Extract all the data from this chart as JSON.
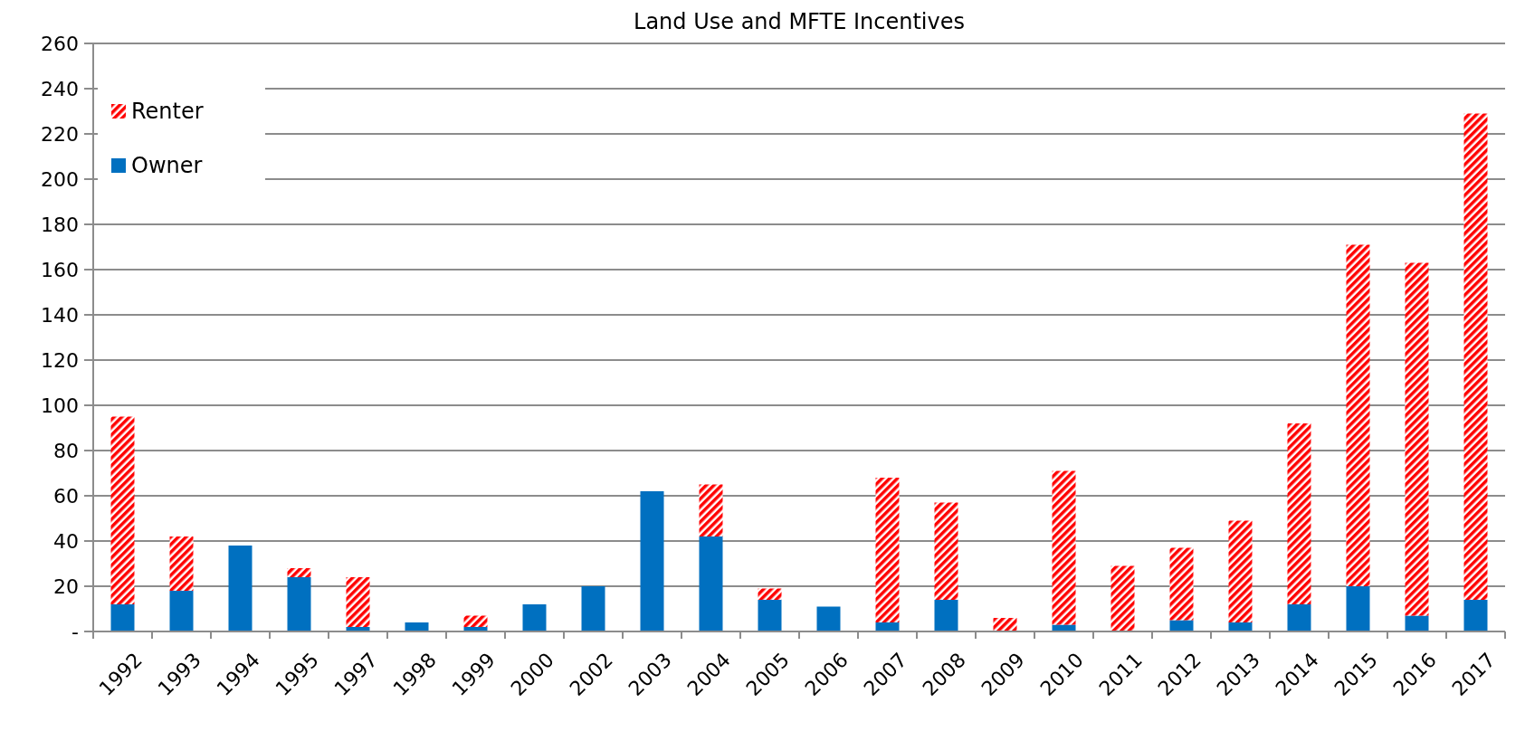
{
  "chart_data": {
    "type": "bar",
    "title": "Land Use and MFTE Incentives",
    "categories": [
      "1992",
      "1993",
      "1994",
      "1995",
      "1997",
      "1998",
      "1999",
      "2000",
      "2002",
      "2003",
      "2004",
      "2005",
      "2006",
      "2007",
      "2008",
      "2009",
      "2010",
      "2011",
      "2012",
      "2013",
      "2014",
      "2015",
      "2016",
      "2017"
    ],
    "stacked": true,
    "series": [
      {
        "name": "Owner",
        "color": "#0070c0",
        "values": [
          12,
          18,
          38,
          24,
          2,
          4,
          2,
          12,
          20,
          62,
          42,
          14,
          11,
          4,
          14,
          0,
          3,
          0,
          5,
          4,
          12,
          20,
          7,
          14
        ]
      },
      {
        "name": "Renter",
        "color": "#ff0000",
        "values": [
          83,
          24,
          0,
          4,
          22,
          0,
          5,
          0,
          0,
          0,
          23,
          5,
          0,
          64,
          43,
          6,
          68,
          29,
          32,
          45,
          80,
          151,
          156,
          215
        ]
      }
    ],
    "ylim": [
      0,
      260
    ],
    "yticks": [
      {
        "value": 0,
        "label": "-"
      },
      20,
      40,
      60,
      80,
      100,
      120,
      140,
      160,
      180,
      200,
      220,
      240,
      260
    ],
    "grid": "y",
    "legend": "top left"
  }
}
